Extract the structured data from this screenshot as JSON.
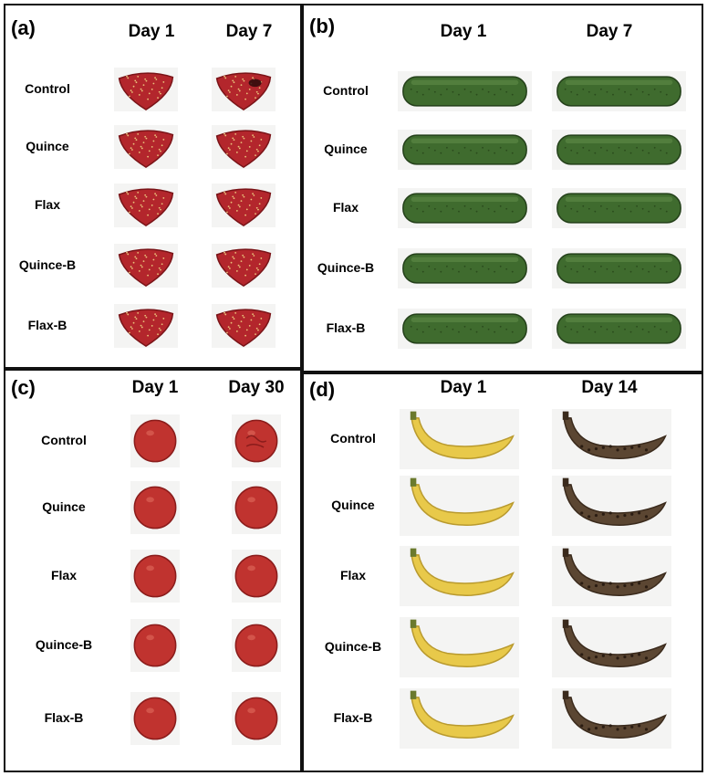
{
  "treatments": [
    "Control",
    "Quince",
    "Flax",
    "Quince-B",
    "Flax-B"
  ],
  "panels": {
    "a": {
      "label": "(a)",
      "fruit": "strawberry",
      "col1": "Day 1",
      "col2": "Day 7"
    },
    "b": {
      "label": "(b)",
      "fruit": "cucumber",
      "col1": "Day 1",
      "col2": "Day 7"
    },
    "c": {
      "label": "(c)",
      "fruit": "tomato",
      "col1": "Day 1",
      "col2": "Day 30"
    },
    "d": {
      "label": "(d)",
      "fruit": "banana",
      "col1": "Day 1",
      "col2": "Day 14"
    }
  },
  "colors": {
    "strawberry": "#b3262c",
    "strawberry_dark": "#7a1418",
    "cucumber": "#3f6b2e",
    "cucumber_dark": "#24401a",
    "tomato": "#c0332f",
    "tomato_dark": "#8a1c1b",
    "banana_fresh": "#e8c94a",
    "banana_aged": "#5b4632",
    "banana_aged_light": "#8a6a3e",
    "border": "#111111"
  }
}
